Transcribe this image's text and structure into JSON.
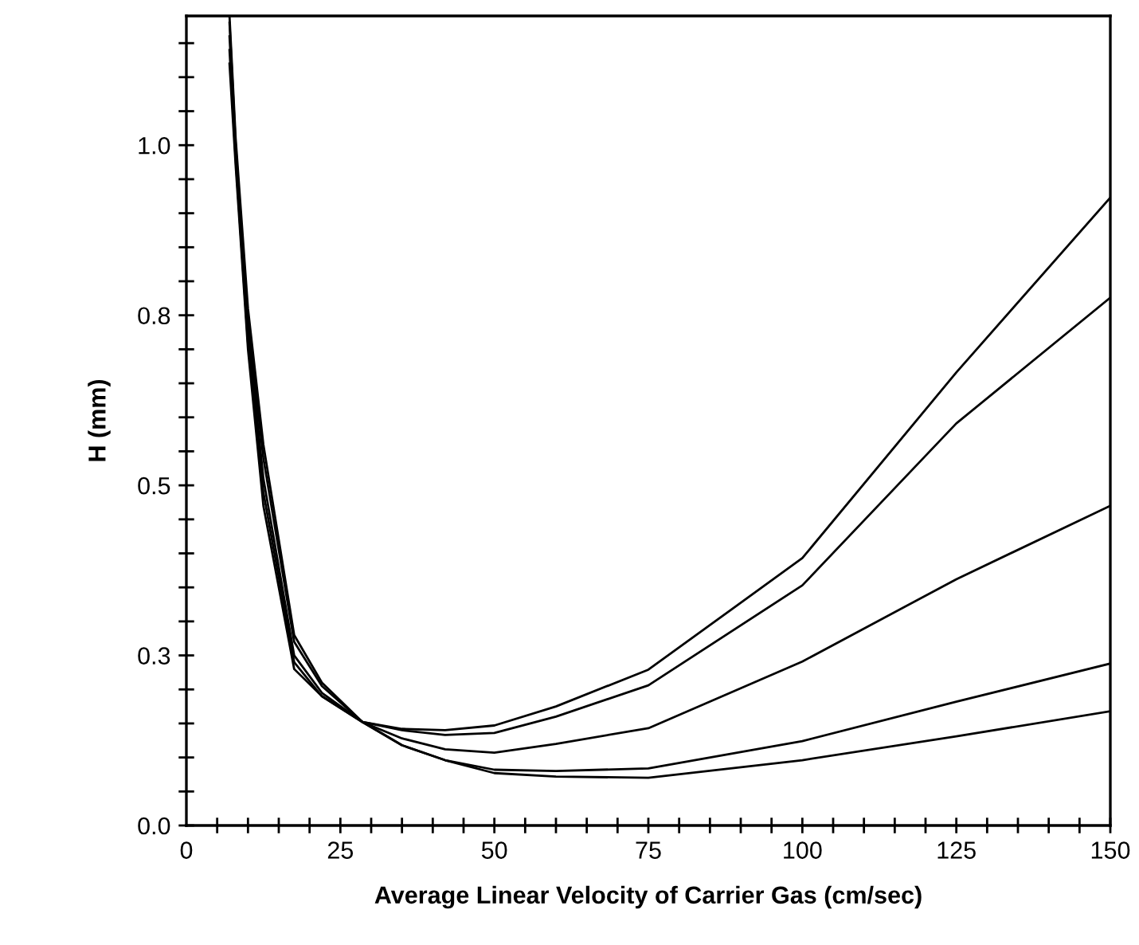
{
  "chart_data": {
    "type": "line",
    "xlabel": "Average Linear Velocity of Carrier Gas (cm/sec)",
    "ylabel": "H (mm)",
    "x": [
      7,
      8,
      10,
      12.5,
      17.5,
      22,
      28.6,
      35,
      42,
      50,
      60,
      75,
      100,
      125,
      150
    ],
    "series": [
      {
        "color": "#000000",
        "values": [
          1.12,
          0.97,
          0.7,
          0.47,
          0.23,
          0.19,
          0.152,
          0.142,
          0.14,
          0.147,
          0.175,
          0.229,
          0.393,
          0.666,
          0.923
        ]
      },
      {
        "color": "#000000",
        "values": [
          1.14,
          0.98,
          0.71,
          0.49,
          0.24,
          0.19,
          0.152,
          0.14,
          0.133,
          0.136,
          0.16,
          0.206,
          0.353,
          0.591,
          0.776
        ]
      },
      {
        "color": "#000000",
        "values": [
          1.16,
          0.99,
          0.73,
          0.51,
          0.25,
          0.195,
          0.152,
          0.128,
          0.112,
          0.107,
          0.12,
          0.143,
          0.241,
          0.362,
          0.47
        ]
      },
      {
        "color": "#000000",
        "values": [
          1.18,
          1.0,
          0.74,
          0.54,
          0.27,
          0.205,
          0.152,
          0.118,
          0.096,
          0.082,
          0.08,
          0.084,
          0.124,
          0.182,
          0.238
        ]
      },
      {
        "color": "#000000",
        "values": [
          1.19,
          1.01,
          0.76,
          0.56,
          0.28,
          0.21,
          0.152,
          0.118,
          0.096,
          0.077,
          0.072,
          0.07,
          0.096,
          0.131,
          0.168
        ]
      }
    ],
    "xlim": [
      0,
      150
    ],
    "ylim": [
      0,
      1.19
    ],
    "xticks": [
      0,
      {
        "value": 5,
        "label": null
      },
      {
        "value": 10,
        "label": null
      },
      {
        "value": 15,
        "label": null
      },
      {
        "value": 20,
        "label": null
      },
      25,
      {
        "value": 30,
        "label": null
      },
      {
        "value": 35,
        "label": null
      },
      {
        "value": 40,
        "label": null
      },
      {
        "value": 45,
        "label": null
      },
      50,
      {
        "value": 55,
        "label": null
      },
      {
        "value": 60,
        "label": null
      },
      {
        "value": 65,
        "label": null
      },
      {
        "value": 70,
        "label": null
      },
      75,
      {
        "value": 80,
        "label": null
      },
      {
        "value": 85,
        "label": null
      },
      {
        "value": 90,
        "label": null
      },
      {
        "value": 95,
        "label": null
      },
      100,
      {
        "value": 105,
        "label": null
      },
      {
        "value": 110,
        "label": null
      },
      {
        "value": 115,
        "label": null
      },
      {
        "value": 120,
        "label": null
      },
      125,
      {
        "value": 130,
        "label": null
      },
      {
        "value": 135,
        "label": null
      },
      {
        "value": 140,
        "label": null
      },
      {
        "value": 145,
        "label": null
      },
      150
    ],
    "yticks": [
      {
        "value": 0,
        "label": "0.0"
      },
      {
        "value": 0.05,
        "label": null
      },
      {
        "value": 0.1,
        "label": null
      },
      {
        "value": 0.15,
        "label": null
      },
      {
        "value": 0.2,
        "label": null
      },
      {
        "value": 0.25,
        "label": "0.3"
      },
      {
        "value": 0.3,
        "label": null
      },
      {
        "value": 0.35,
        "label": null
      },
      {
        "value": 0.4,
        "label": null
      },
      {
        "value": 0.45,
        "label": null
      },
      {
        "value": 0.5,
        "label": "0.5"
      },
      {
        "value": 0.55,
        "label": null
      },
      {
        "value": 0.6,
        "label": null
      },
      {
        "value": 0.65,
        "label": null
      },
      {
        "value": 0.7,
        "label": null
      },
      {
        "value": 0.75,
        "label": "0.8"
      },
      {
        "value": 0.8,
        "label": null
      },
      {
        "value": 0.85,
        "label": null
      },
      {
        "value": 0.9,
        "label": null
      },
      {
        "value": 0.95,
        "label": null
      },
      {
        "value": 1.0,
        "label": "1.0"
      },
      {
        "value": 1.05,
        "label": null
      },
      {
        "value": 1.1,
        "label": null
      },
      {
        "value": 1.15,
        "label": null
      }
    ],
    "grid": false,
    "legend": false,
    "marker": "none",
    "line_style": "solid"
  }
}
